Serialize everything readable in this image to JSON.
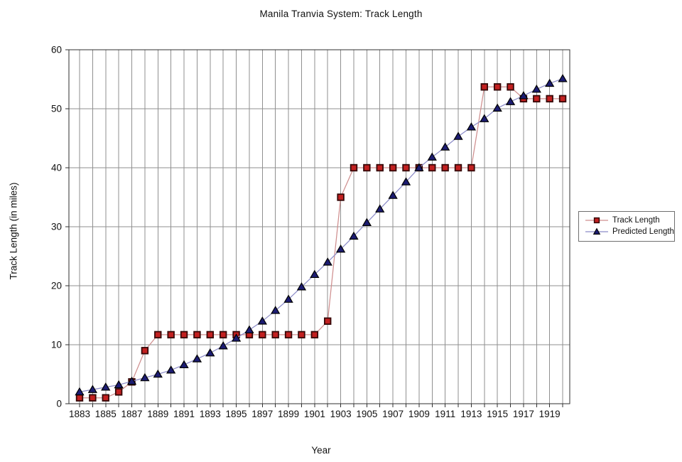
{
  "chart_data": {
    "type": "line",
    "title": "Manila Tranvia System: Track Length",
    "xlabel": "Year",
    "ylabel": "Track Length (in miles)",
    "x_start": 1883,
    "x_end": 1920,
    "x_step": 1,
    "x_tick_labels": [
      "1883",
      "1885",
      "1887",
      "1889",
      "1891",
      "1893",
      "1895",
      "1897",
      "1899",
      "1901",
      "1903",
      "1905",
      "1907",
      "1909",
      "1911",
      "1913",
      "1915",
      "1917",
      "1919"
    ],
    "ylim": [
      0,
      60
    ],
    "ytick_step": 10,
    "grid": "both",
    "legend_position": "right-outside",
    "colors": {
      "gridline": "#8f8f8f",
      "axis_border": "#2f2f2f",
      "text": "#111111"
    },
    "series": [
      {
        "name": "Track Length",
        "marker": "square",
        "marker_fill": "#c22020",
        "marker_edge": "#350808",
        "line_color": "#cf8f8f",
        "values": [
          1,
          1,
          1,
          2,
          3.7,
          9,
          11.7,
          11.7,
          11.7,
          11.7,
          11.7,
          11.7,
          11.7,
          11.7,
          11.7,
          11.7,
          11.7,
          11.7,
          11.7,
          14,
          35,
          40,
          40,
          40,
          40,
          40,
          40,
          40,
          40,
          40,
          40,
          53.7,
          53.7,
          53.7,
          51.7,
          51.7,
          51.7,
          51.7
        ]
      },
      {
        "name": "Predicted Length",
        "marker": "triangle",
        "marker_fill": "#1c1c72",
        "marker_edge": "#000000",
        "line_color": "#8c8cc8",
        "values": [
          2,
          2.4,
          2.8,
          3.2,
          3.8,
          4.4,
          5,
          5.7,
          6.6,
          7.6,
          8.6,
          9.8,
          11.1,
          12.5,
          14,
          15.8,
          17.7,
          19.8,
          21.9,
          24,
          26.2,
          28.4,
          30.7,
          33,
          35.3,
          37.6,
          40,
          41.8,
          43.5,
          45.3,
          46.9,
          48.3,
          50.1,
          51.2,
          52.2,
          53.3,
          54.3,
          55.1
        ]
      }
    ]
  }
}
